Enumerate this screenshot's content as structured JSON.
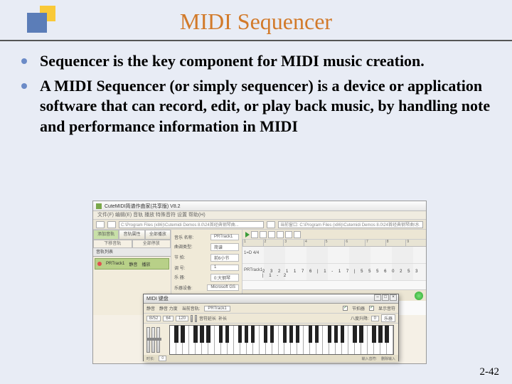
{
  "title": "MIDI Sequencer",
  "bullets": [
    "Sequencer is the key component for MIDI music creation.",
    "A MIDI Sequencer (or simply sequencer) is a device or application software that can record, edit, or play back music, by handling note and performance information in MIDI"
  ],
  "page_number": "2-42",
  "screenshot": {
    "app_title": "CuteMIDI简谱作曲家(共享版) V8.2",
    "menu": "文件(F)  编辑(E)  音轨  播放  特殊音符  设置  帮助(H)",
    "path1": "C:\\Program Files (x86)\\Cutemidi Demos 8.0\\24首经典钢琴曲...",
    "path2": "当前窗口: C:\\Program Files (x86)\\Cutemidi Demos 8.0\\24首经典钢琴曲\\水清天高远.cmd",
    "left_tabs": [
      "添加音轨",
      "音轨属性",
      "全部播放"
    ],
    "left_tabs2": [
      "下移音轨",
      "全部停放"
    ],
    "tracklist_label": "音轨列表",
    "track_name": "PRTrack1",
    "track_cols": [
      "静音",
      "播放"
    ],
    "props": [
      {
        "k": "音乐 名称:",
        "v": "PRTrack1"
      },
      {
        "k": "曲调类型:",
        "v": "简谱"
      },
      {
        "k": "节 拍:",
        "v": "前6小节"
      },
      {
        "k": "调 号:",
        "v": "1"
      },
      {
        "k": "乐 器:",
        "v": "0:大钢琴"
      },
      {
        "k": "乐器设备:",
        "v": "Microsoft GS"
      }
    ],
    "ruler": [
      "1",
      "2",
      "3",
      "4",
      "5",
      "6",
      "7",
      "8",
      "9"
    ],
    "track_label": "1=D 4/4",
    "track_meta": "PRTrack1",
    "note_line": "2  3  2 1 1 7 6 | 1  -  1 7 | 5 5 5  6 0 2 5 3 | 1  -  2"
  },
  "piano": {
    "title": "MIDI 键盘",
    "labels": [
      "静音",
      "静音 力度",
      "当前音轨:",
      "PRTrack1"
    ],
    "chk1": "节拍器",
    "chk2": "显示音符",
    "row2_labels": [
      "B/52",
      "64",
      "120",
      "音符延长",
      "补长",
      "八度升降:",
      "0",
      "乐器"
    ],
    "footer": [
      "时长:",
      "0",
      "输入音符:",
      "删除输入"
    ],
    "white_keys": 35,
    "black_pattern": [
      1,
      1,
      0,
      1,
      1,
      1,
      0
    ]
  },
  "colors": {
    "bg": "#e8ecf5",
    "title": "#d27a2a",
    "bullet": "#6b8bc7",
    "logo_yellow": "#f9c938",
    "logo_blue": "#5b7db8",
    "track_green": "#b8d088"
  }
}
